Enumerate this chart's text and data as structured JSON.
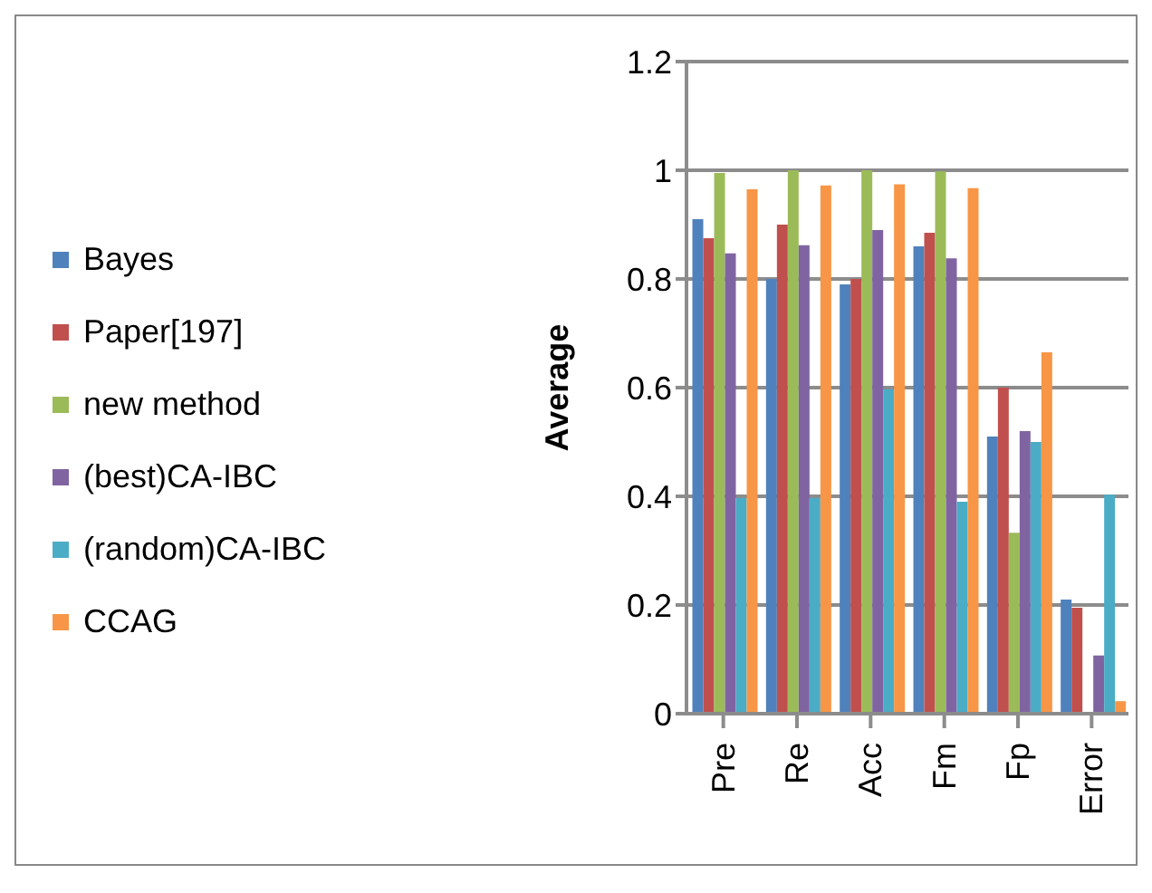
{
  "chart_data": {
    "type": "bar",
    "ylabel": "Average",
    "categories": [
      "Pre",
      "Re",
      "Acc",
      "Fm",
      "Fp",
      "Error"
    ],
    "series": [
      {
        "name": "Bayes",
        "color": "#4f81bd",
        "values": [
          0.91,
          0.8,
          0.79,
          0.86,
          0.51,
          0.21
        ]
      },
      {
        "name": "Paper[197]",
        "color": "#c0504d",
        "values": [
          0.875,
          0.9,
          0.8,
          0.885,
          0.6,
          0.195
        ]
      },
      {
        "name": "new method",
        "color": "#9bbb59",
        "values": [
          0.995,
          1.0,
          1.0,
          0.998,
          0.333,
          0
        ]
      },
      {
        "name": "(best)CA-IBC",
        "color": "#8064a2",
        "values": [
          0.847,
          0.862,
          0.89,
          0.838,
          0.52,
          0.107
        ]
      },
      {
        "name": "(random)CA-IBC",
        "color": "#4bacc6",
        "values": [
          0.397,
          0.397,
          0.597,
          0.39,
          0.5,
          0.403
        ]
      },
      {
        "name": "CCAG",
        "color": "#f79646",
        "values": [
          0.965,
          0.972,
          0.974,
          0.967,
          0.665,
          0.023
        ]
      }
    ],
    "ylim": [
      0,
      1.2
    ],
    "yticks": [
      0,
      0.2,
      0.4,
      0.6,
      0.8,
      1,
      1.2
    ],
    "grid": "y",
    "legend": "left"
  }
}
